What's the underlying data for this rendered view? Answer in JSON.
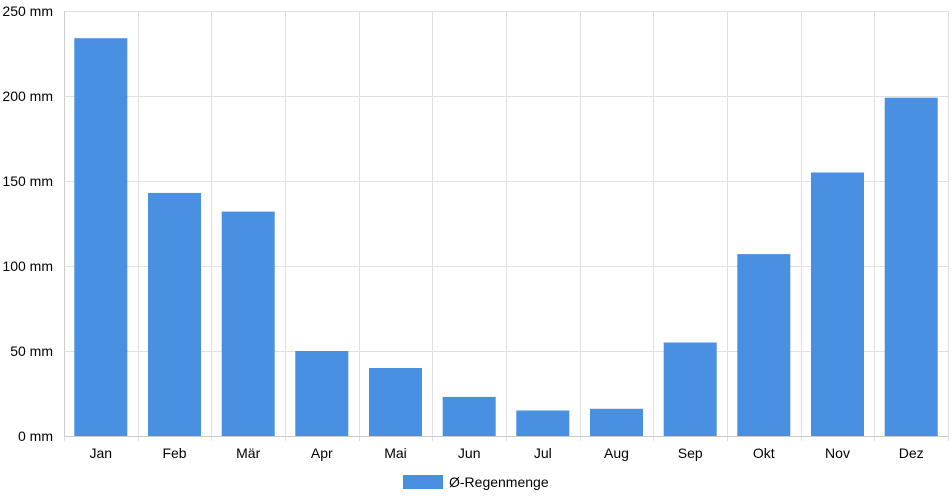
{
  "chart_data": {
    "type": "bar",
    "categories": [
      "Jan",
      "Feb",
      "Mär",
      "Apr",
      "Mai",
      "Jun",
      "Jul",
      "Aug",
      "Sep",
      "Okt",
      "Nov",
      "Dez"
    ],
    "series": [
      {
        "name": "Ø-Regenmenge",
        "values": [
          234,
          143,
          132,
          50,
          40,
          23,
          15,
          16,
          55,
          107,
          155,
          199
        ]
      }
    ],
    "y_ticks": [
      "0 mm",
      "50 mm",
      "100 mm",
      "150 mm",
      "200 mm",
      "250 mm"
    ],
    "ylim": [
      0,
      250
    ],
    "y_unit": "mm",
    "grid": true,
    "legend_position": "bottom",
    "bar_color": "#4a90e2",
    "grid_color": "#e0e0e0"
  }
}
